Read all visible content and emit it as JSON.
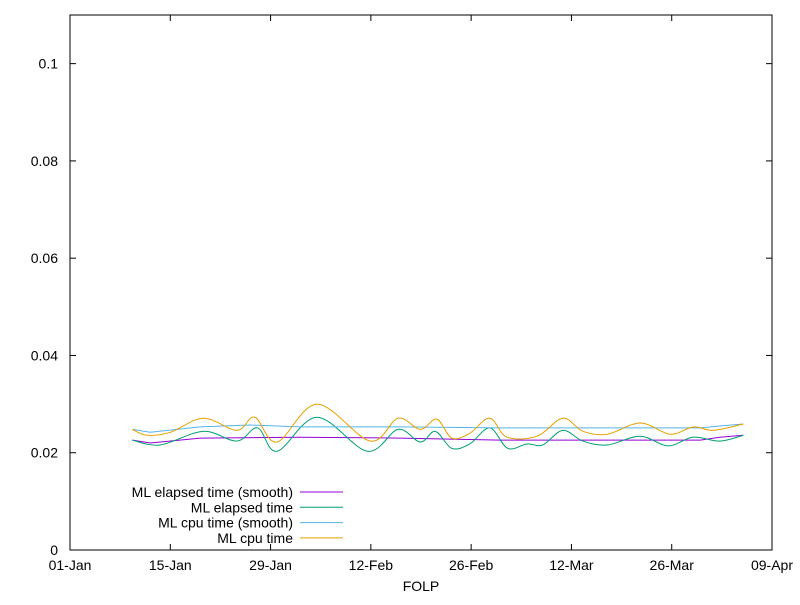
{
  "chart_data": {
    "type": "line",
    "title": "",
    "xlabel": "FOLP",
    "ylabel": "",
    "x_unit": "days since 01-Jan",
    "xlim": [
      0,
      98
    ],
    "ylim": [
      0,
      0.11
    ],
    "x_ticks": [
      {
        "value": 0,
        "label": "01-Jan"
      },
      {
        "value": 14,
        "label": "15-Jan"
      },
      {
        "value": 28,
        "label": "29-Jan"
      },
      {
        "value": 42,
        "label": "12-Feb"
      },
      {
        "value": 56,
        "label": "26-Feb"
      },
      {
        "value": 70,
        "label": "12-Mar"
      },
      {
        "value": 84,
        "label": "26-Mar"
      },
      {
        "value": 98,
        "label": "09-Apr"
      }
    ],
    "y_ticks": [
      {
        "value": 0,
        "label": "0"
      },
      {
        "value": 0.02,
        "label": "0.02"
      },
      {
        "value": 0.04,
        "label": "0.04"
      },
      {
        "value": 0.06,
        "label": "0.06"
      },
      {
        "value": 0.08,
        "label": "0.08"
      },
      {
        "value": 0.1,
        "label": "0.1"
      }
    ],
    "grid": false,
    "legend_position": "bottom-left",
    "series": [
      {
        "name": "ML elapsed time (smooth)",
        "color": "#9400d3",
        "smooth": false,
        "x": [
          8.7,
          11.2,
          18.2,
          32.2,
          46.1,
          60.0,
          88.0,
          90.7,
          94.0
        ],
        "y": [
          0.0226,
          0.022,
          0.023,
          0.0232,
          0.023,
          0.0226,
          0.0226,
          0.0232,
          0.0236
        ]
      },
      {
        "name": "ML elapsed time",
        "color": "#009e73",
        "smooth": true,
        "x": [
          8.7,
          12.6,
          18.6,
          23.3,
          26.2,
          28.9,
          34.5,
          41.5,
          45.8,
          48.9,
          51.0,
          53.3,
          55.8,
          58.6,
          61.1,
          63.8,
          66.0,
          68.8,
          71.6,
          75.0,
          79.6,
          83.5,
          87.0,
          90.7,
          94.0
        ],
        "y": [
          0.0226,
          0.0216,
          0.0244,
          0.0224,
          0.0251,
          0.0203,
          0.0273,
          0.0203,
          0.0248,
          0.0222,
          0.0244,
          0.0209,
          0.0218,
          0.0251,
          0.0209,
          0.0218,
          0.0216,
          0.0246,
          0.0224,
          0.0216,
          0.0234,
          0.0214,
          0.0232,
          0.0224,
          0.0236
        ]
      },
      {
        "name": "ML cpu time (smooth)",
        "color": "#56b4e9",
        "smooth": false,
        "x": [
          8.7,
          11.2,
          18.2,
          25.1,
          32.2,
          46.1,
          60.0,
          88.0,
          90.7,
          94.0
        ],
        "y": [
          0.0248,
          0.0242,
          0.0253,
          0.0257,
          0.0253,
          0.0253,
          0.0251,
          0.0251,
          0.0255,
          0.0259
        ]
      },
      {
        "name": "ML cpu time",
        "color": "#e69f00",
        "smooth": true,
        "x": [
          8.7,
          10.7,
          14.0,
          18.6,
          23.3,
          25.8,
          28.9,
          34.5,
          41.9,
          45.8,
          48.9,
          51.2,
          53.3,
          55.8,
          58.6,
          61.0,
          65.2,
          68.8,
          71.6,
          75.0,
          79.6,
          83.8,
          87.0,
          89.8,
          94.0
        ],
        "y": [
          0.0248,
          0.0236,
          0.0242,
          0.0271,
          0.0246,
          0.0273,
          0.0222,
          0.03,
          0.0224,
          0.0271,
          0.0248,
          0.0269,
          0.023,
          0.024,
          0.0271,
          0.0232,
          0.0234,
          0.0271,
          0.0244,
          0.0238,
          0.0261,
          0.0238,
          0.0253,
          0.0246,
          0.0259
        ]
      }
    ]
  }
}
